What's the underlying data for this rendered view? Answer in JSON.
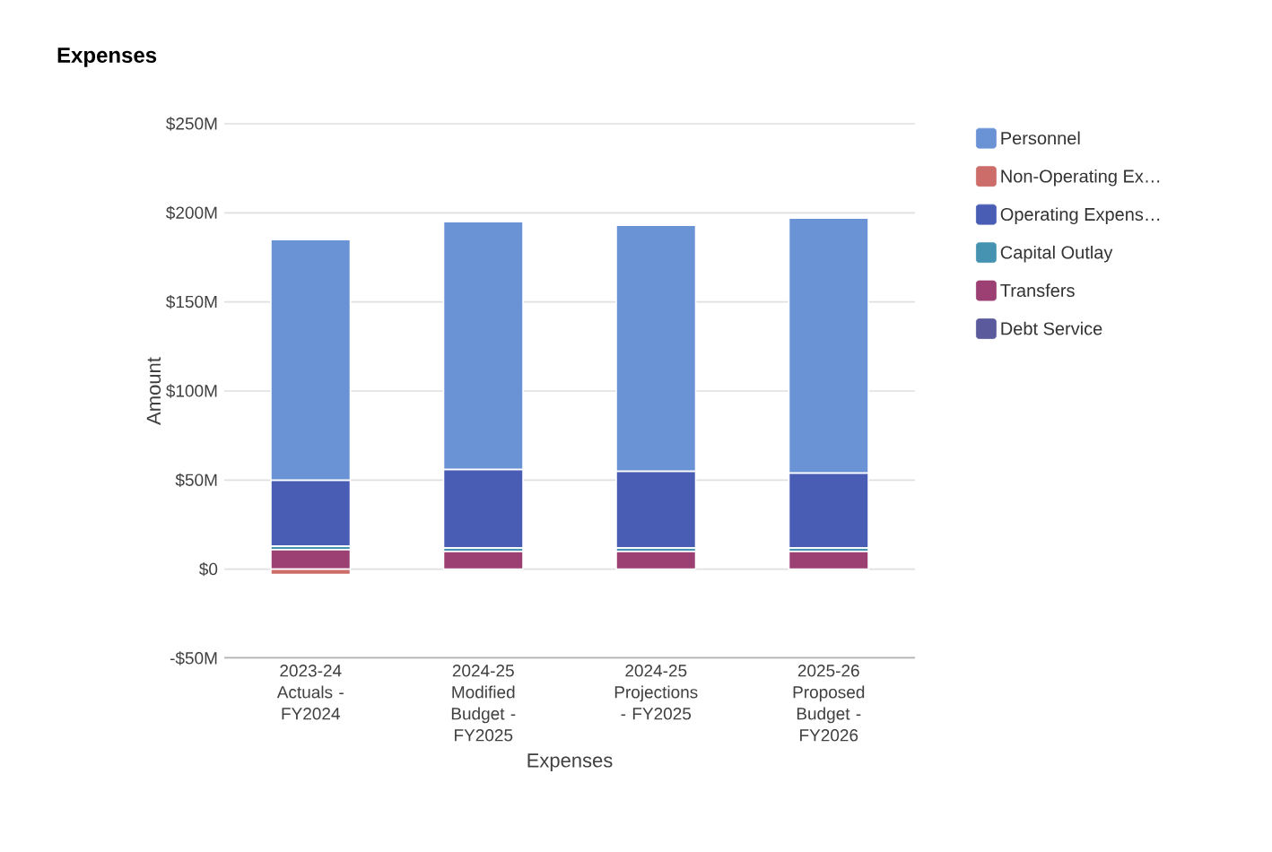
{
  "chart_data": {
    "type": "bar",
    "title": "Expenses",
    "xlabel": "Expenses",
    "ylabel": "Amount",
    "stacked": true,
    "categories": [
      "2023-24 Actuals - FY2024",
      "2024-25 Modified Budget - FY2025",
      "2024-25 Projections - FY2025",
      "2025-26 Proposed Budget - FY2026"
    ],
    "series": [
      {
        "name": "Debt Service",
        "color": "#5a5a9c",
        "values": [
          null,
          null,
          null,
          null
        ]
      },
      {
        "name": "Transfers",
        "color": "#9c3f73",
        "values": [
          11,
          10,
          10,
          10
        ]
      },
      {
        "name": "Capital Outlay",
        "color": "#4593b0",
        "values": [
          2,
          2,
          2,
          2
        ]
      },
      {
        "name": "Operating Expens…",
        "color": "#4a5db5",
        "values": [
          37,
          44,
          43,
          42
        ]
      },
      {
        "name": "Non-Operating Ex…",
        "color": "#cd6d6a",
        "values": [
          -3,
          null,
          null,
          null
        ]
      },
      {
        "name": "Personnel",
        "color": "#6a93d6",
        "values": [
          135,
          139,
          138,
          143
        ]
      }
    ],
    "ylim": [
      -50,
      250
    ],
    "yticks": [
      {
        "value": -50,
        "label": "-$50M"
      },
      {
        "value": 0,
        "label": "$0"
      },
      {
        "value": 50,
        "label": "$50M"
      },
      {
        "value": 100,
        "label": "$100M"
      },
      {
        "value": 150,
        "label": "$150M"
      },
      {
        "value": 200,
        "label": "$200M"
      },
      {
        "value": 250,
        "label": "$250M"
      }
    ],
    "grid": "y",
    "legend": "right"
  }
}
